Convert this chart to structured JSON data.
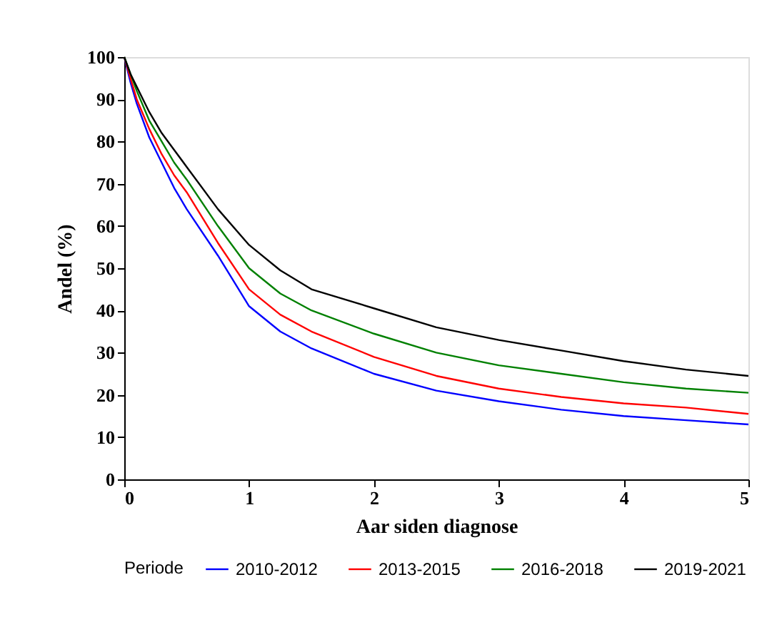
{
  "chart_data": {
    "type": "line",
    "xlabel": "Aar siden diagnose",
    "ylabel": "Andel (%)",
    "legend_title": "Periode",
    "legend": "bottom",
    "grid": false,
    "marker": "none",
    "line_style": "solid",
    "xlim": [
      0,
      5
    ],
    "xticks": [
      0,
      1,
      2,
      3,
      4,
      5
    ],
    "ylim": [
      0,
      100
    ],
    "yticks": [
      0,
      10,
      20,
      30,
      40,
      50,
      60,
      70,
      80,
      90,
      100
    ],
    "x": [
      0,
      0.05,
      0.1,
      0.2,
      0.3,
      0.4,
      0.5,
      0.75,
      1,
      1.25,
      1.5,
      2,
      2.5,
      3,
      3.5,
      4,
      4.5,
      5
    ],
    "series": [
      {
        "name": "2010-2012",
        "color": "#0000ff",
        "values": [
          100,
          94,
          89,
          81,
          75,
          69,
          64,
          53,
          41,
          35,
          31,
          25,
          21,
          18.5,
          16.5,
          15,
          14,
          13
        ]
      },
      {
        "name": "2013-2015",
        "color": "#ff0000",
        "values": [
          100,
          95,
          90,
          83,
          77,
          72,
          68,
          56,
          45,
          39,
          35,
          29,
          24.5,
          21.5,
          19.5,
          18,
          17,
          15.5
        ]
      },
      {
        "name": "2016-2018",
        "color": "#008000",
        "values": [
          100,
          96,
          92,
          85,
          80,
          75,
          71,
          60,
          50,
          44,
          40,
          34.5,
          30,
          27,
          25,
          23,
          21.5,
          20.5
        ]
      },
      {
        "name": "2019-2021",
        "color": "#000000",
        "values": [
          100,
          96,
          93,
          87,
          82,
          78,
          74,
          64,
          55.5,
          49.5,
          45,
          40.5,
          36,
          33,
          30.5,
          28,
          26,
          24.5
        ]
      }
    ]
  }
}
